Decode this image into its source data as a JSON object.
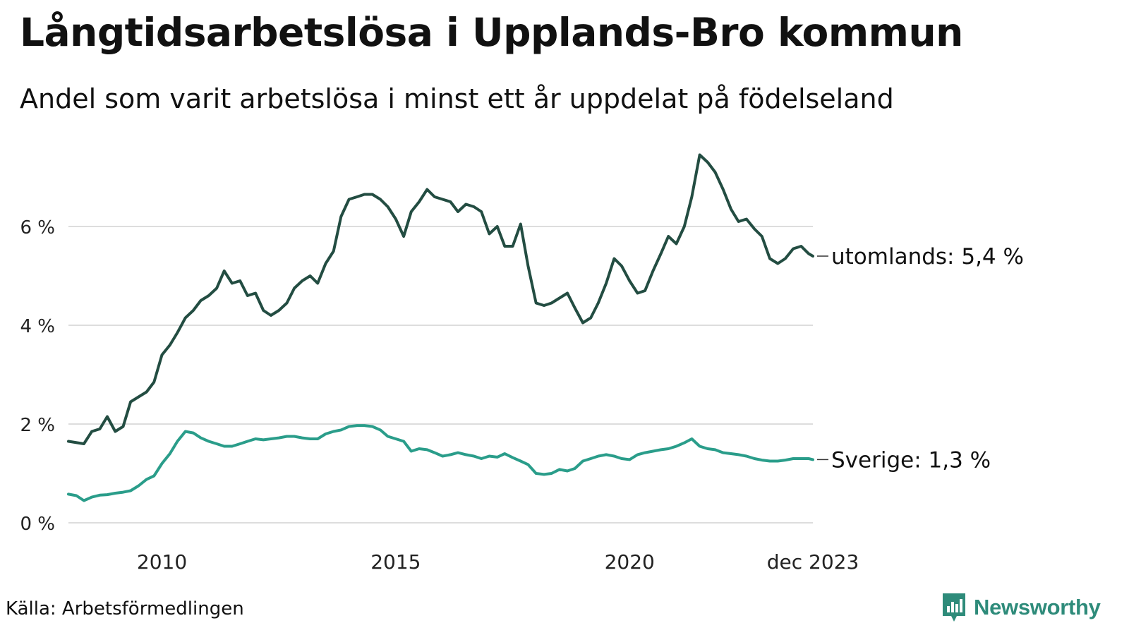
{
  "title": "Långtidsarbetslösa i Upplands-Bro kommun",
  "subtitle": "Andel som varit arbetslösa i minst ett år uppdelat på födelseland",
  "source": "Källa: Arbetsförmedlingen",
  "brand": "Newsworthy",
  "colors": {
    "utomlands": "#234d42",
    "sverige": "#2a9d8a",
    "grid": "#dddddd",
    "brand": "#2e8b7a"
  },
  "chart_data": {
    "type": "line",
    "title": "Långtidsarbetslösa i Upplands-Bro kommun",
    "subtitle": "Andel som varit arbetslösa i minst ett år uppdelat på födelseland",
    "xlabel": "",
    "ylabel": "",
    "xlim": [
      2008.0,
      2023.92
    ],
    "ylim": [
      0,
      7.5
    ],
    "y_ticks": [
      {
        "value": 0,
        "label": "0 %"
      },
      {
        "value": 2,
        "label": "2 %"
      },
      {
        "value": 4,
        "label": "4 %"
      },
      {
        "value": 6,
        "label": "6 %"
      }
    ],
    "x_ticks": [
      {
        "value": 2010,
        "label": "2010"
      },
      {
        "value": 2015,
        "label": "2015"
      },
      {
        "value": 2020,
        "label": "2020"
      },
      {
        "value": 2023.92,
        "label": "dec 2023"
      }
    ],
    "grid": true,
    "series": [
      {
        "name": "utomlands",
        "end_label": "utomlands: 5,4 %",
        "color": "#234d42",
        "x": [
          2008.0,
          2008.33,
          2008.5,
          2008.67,
          2008.83,
          2009.0,
          2009.17,
          2009.33,
          2009.5,
          2009.67,
          2009.83,
          2010.0,
          2010.17,
          2010.33,
          2010.5,
          2010.67,
          2010.83,
          2011.0,
          2011.17,
          2011.33,
          2011.5,
          2011.67,
          2011.83,
          2012.0,
          2012.17,
          2012.33,
          2012.5,
          2012.67,
          2012.83,
          2013.0,
          2013.17,
          2013.33,
          2013.5,
          2013.67,
          2013.83,
          2014.0,
          2014.17,
          2014.33,
          2014.5,
          2014.67,
          2014.83,
          2015.0,
          2015.17,
          2015.33,
          2015.5,
          2015.67,
          2015.83,
          2016.0,
          2016.17,
          2016.33,
          2016.5,
          2016.67,
          2016.83,
          2017.0,
          2017.17,
          2017.33,
          2017.5,
          2017.67,
          2017.83,
          2018.0,
          2018.17,
          2018.33,
          2018.5,
          2018.67,
          2018.83,
          2019.0,
          2019.17,
          2019.33,
          2019.5,
          2019.67,
          2019.83,
          2020.0,
          2020.17,
          2020.33,
          2020.5,
          2020.67,
          2020.83,
          2021.0,
          2021.17,
          2021.33,
          2021.5,
          2021.67,
          2021.83,
          2022.0,
          2022.17,
          2022.33,
          2022.5,
          2022.67,
          2022.83,
          2023.0,
          2023.17,
          2023.33,
          2023.5,
          2023.67,
          2023.83,
          2023.92
        ],
        "values": [
          1.65,
          1.6,
          1.85,
          1.9,
          2.15,
          1.85,
          1.95,
          2.45,
          2.55,
          2.65,
          2.85,
          3.4,
          3.6,
          3.85,
          4.15,
          4.3,
          4.5,
          4.6,
          4.75,
          5.1,
          4.85,
          4.9,
          4.6,
          4.65,
          4.3,
          4.2,
          4.3,
          4.45,
          4.75,
          4.9,
          5.0,
          4.85,
          5.25,
          5.5,
          6.2,
          6.55,
          6.6,
          6.65,
          6.65,
          6.55,
          6.4,
          6.15,
          5.8,
          6.3,
          6.5,
          6.75,
          6.6,
          6.55,
          6.5,
          6.3,
          6.45,
          6.4,
          6.3,
          5.85,
          6.0,
          5.6,
          5.6,
          6.05,
          5.2,
          4.45,
          4.4,
          4.45,
          4.55,
          4.65,
          4.35,
          4.05,
          4.15,
          4.45,
          4.85,
          5.35,
          5.2,
          4.9,
          4.65,
          4.7,
          5.1,
          5.45,
          5.8,
          5.65,
          6.0,
          6.6,
          7.45,
          7.3,
          7.1,
          6.75,
          6.35,
          6.1,
          6.15,
          5.95,
          5.8,
          5.35,
          5.25,
          5.35,
          5.55,
          5.6,
          5.45,
          5.4
        ]
      },
      {
        "name": "Sverige",
        "end_label": "Sverige: 1,3 %",
        "color": "#2a9d8a",
        "x": [
          2008.0,
          2008.17,
          2008.33,
          2008.5,
          2008.67,
          2008.83,
          2009.0,
          2009.17,
          2009.33,
          2009.5,
          2009.67,
          2009.83,
          2010.0,
          2010.17,
          2010.33,
          2010.5,
          2010.67,
          2010.83,
          2011.0,
          2011.17,
          2011.33,
          2011.5,
          2011.67,
          2011.83,
          2012.0,
          2012.17,
          2012.33,
          2012.5,
          2012.67,
          2012.83,
          2013.0,
          2013.17,
          2013.33,
          2013.5,
          2013.67,
          2013.83,
          2014.0,
          2014.17,
          2014.33,
          2014.5,
          2014.67,
          2014.83,
          2015.0,
          2015.17,
          2015.33,
          2015.5,
          2015.67,
          2015.83,
          2016.0,
          2016.17,
          2016.33,
          2016.5,
          2016.67,
          2016.83,
          2017.0,
          2017.17,
          2017.33,
          2017.5,
          2017.67,
          2017.83,
          2018.0,
          2018.17,
          2018.33,
          2018.5,
          2018.67,
          2018.83,
          2019.0,
          2019.17,
          2019.33,
          2019.5,
          2019.67,
          2019.83,
          2020.0,
          2020.17,
          2020.33,
          2020.5,
          2020.67,
          2020.83,
          2021.0,
          2021.17,
          2021.33,
          2021.5,
          2021.67,
          2021.83,
          2022.0,
          2022.17,
          2022.33,
          2022.5,
          2022.67,
          2022.83,
          2023.0,
          2023.17,
          2023.33,
          2023.5,
          2023.67,
          2023.83,
          2023.92
        ],
        "values": [
          0.58,
          0.55,
          0.45,
          0.52,
          0.56,
          0.57,
          0.6,
          0.62,
          0.65,
          0.75,
          0.88,
          0.95,
          1.2,
          1.4,
          1.65,
          1.85,
          1.82,
          1.72,
          1.65,
          1.6,
          1.55,
          1.55,
          1.6,
          1.65,
          1.7,
          1.68,
          1.7,
          1.72,
          1.75,
          1.75,
          1.72,
          1.7,
          1.7,
          1.8,
          1.85,
          1.88,
          1.95,
          1.97,
          1.97,
          1.95,
          1.88,
          1.75,
          1.7,
          1.65,
          1.45,
          1.5,
          1.48,
          1.42,
          1.35,
          1.38,
          1.42,
          1.38,
          1.35,
          1.3,
          1.35,
          1.33,
          1.4,
          1.32,
          1.25,
          1.18,
          1.0,
          0.98,
          1.0,
          1.08,
          1.05,
          1.1,
          1.25,
          1.3,
          1.35,
          1.38,
          1.35,
          1.3,
          1.28,
          1.38,
          1.42,
          1.45,
          1.48,
          1.5,
          1.55,
          1.62,
          1.7,
          1.55,
          1.5,
          1.48,
          1.42,
          1.4,
          1.38,
          1.35,
          1.3,
          1.27,
          1.25,
          1.25,
          1.27,
          1.3,
          1.3,
          1.3,
          1.28
        ]
      }
    ]
  }
}
